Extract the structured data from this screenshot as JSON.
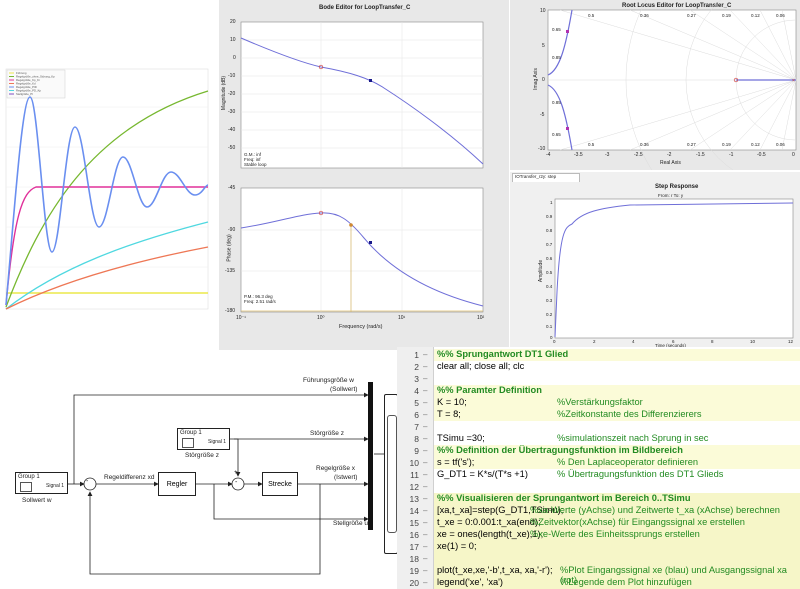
{
  "scope_plot": {
    "legend": [
      "Führung",
      "Regelgröße_ohne_Störung_Kp",
      "Regelgröße_Kp_Ki",
      "Regelgröße_Kd",
      "Regelgröße_PID",
      "Regelgröße_PD_Kp",
      "Stellgröße_PI"
    ],
    "colors": {
      "green": "#77b830",
      "cyan": "#4fd8e0",
      "red": "#ee7755",
      "magenta": "#e0309a",
      "blue": "#6a8ff0",
      "yellow": "#ece84a",
      "purple": "#7d4fc0"
    }
  },
  "bode": {
    "title": "Bode Editor for LoopTransfer_C",
    "mag_ylabel": "Magnitude (dB)",
    "phase_ylabel": "Phase (deg)",
    "xlabel": "Frequency (rad/s)",
    "mag_ticks": [
      "20",
      "10",
      "0",
      "-10",
      "-20",
      "-30",
      "-40",
      "-50"
    ],
    "phase_ticks": [
      "-45",
      "-90",
      "-135",
      "-180"
    ],
    "x_ticks": [
      "10⁻¹",
      "10⁰",
      "10¹",
      "10²"
    ],
    "gm_text": [
      "G.M.: inf",
      "Freq: inf",
      "Stable loop"
    ],
    "pm_text": [
      "P.M.: 96.3 deg",
      "Freq: 2.51 rad/s"
    ]
  },
  "root_locus": {
    "title": "Root Locus Editor for LoopTransfer_C",
    "ylabel": "Imag Axis",
    "xlabel": "Real Axis",
    "x_ticks": [
      "-4",
      "-3.5",
      "-3",
      "-2.5",
      "-2",
      "-1.5",
      "-1",
      "-0.5",
      "0"
    ],
    "y_ticks": [
      "10",
      "5",
      "0",
      "-5",
      "-10"
    ],
    "damping_top": [
      "0.5",
      "0.36",
      "0.27",
      "0.19",
      "0.12",
      "0.06"
    ],
    "damping_bottom": [
      "0.5",
      "0.36",
      "0.27",
      "0.19",
      "0.12",
      "0.06"
    ],
    "freq_labels": [
      "0.65",
      "0.85",
      "0.85",
      "0.65"
    ]
  },
  "step": {
    "tab_label": "IOTransfer_r2y: step",
    "title": "Step Response",
    "subtitle": "From: r  To: y",
    "ylabel": "Amplitude",
    "xlabel": "Time (seconds)",
    "y_ticks": [
      "1",
      "0.9",
      "0.8",
      "0.7",
      "0.6",
      "0.5",
      "0.4",
      "0.3",
      "0.2",
      "0.1",
      "0"
    ],
    "x_ticks": [
      "0",
      "2",
      "4",
      "6",
      "8",
      "10",
      "12"
    ]
  },
  "simulink": {
    "sollwert_block": "Group 1",
    "sollwert_signal": "Signal 1",
    "sollwert_label": "Sollwert w",
    "stoer_block": "Group 1",
    "stoer_signal": "Signal 1",
    "stoer_label": "Störgröße z",
    "regler": "Regler",
    "strecke": "Strecke",
    "regeldifferenz": "Regeldifferenz xd",
    "fuehrung": [
      "Führungsgröße w",
      "(Sollwert)"
    ],
    "stoergroesse": "Störgröße z",
    "regelgroesse": [
      "Regelgröße x",
      "(Istwert)"
    ],
    "stellgroesse": "Stellgröße u",
    "minus": "-",
    "plus": "+"
  },
  "code": {
    "lines": [
      {
        "n": "1",
        "text": "",
        "comment": "%% Sprungantwort DT1 Glied",
        "header": true
      },
      {
        "n": "2",
        "text": "clear all; close all; clc",
        "comment": ""
      },
      {
        "n": "3",
        "text": "",
        "comment": ""
      },
      {
        "n": "4",
        "text": "",
        "comment": "%% Paramter Definition",
        "header": true
      },
      {
        "n": "5",
        "text": "K = 10;",
        "comment": "%Verstärkungsfaktor"
      },
      {
        "n": "6",
        "text": "T = 8;",
        "comment": "%Zeitkonstante des Differenzierers"
      },
      {
        "n": "7",
        "text": "",
        "comment": ""
      },
      {
        "n": "8",
        "text": "TSimu =30;",
        "comment": "%simulationszeit nach Sprung in sec"
      },
      {
        "n": "9",
        "text": "",
        "comment": "%% Definition der Übertragungsfunktion im Bildbereich",
        "header": true
      },
      {
        "n": "10",
        "text": "s = tf('s');",
        "comment": "% Den Laplaceoperator definieren"
      },
      {
        "n": "11",
        "text": "G_DT1 = K*s/(T*s +1)",
        "comment": "% Übertragungsfunktion des DT1 Glieds"
      },
      {
        "n": "12",
        "text": "",
        "comment": ""
      },
      {
        "n": "13",
        "text": "",
        "comment": "%% Visualisieren der Sprungantwort im Bereich 0..TSimu",
        "header": true
      },
      {
        "n": "14",
        "text": "[xa,t_xa]=step(G_DT1,TSimu);",
        "comment": "%xa-Werte (yAchse) und Zeitwerte t_xa (xAchse) berechnen"
      },
      {
        "n": "15",
        "text": "t_xe = 0:0.001:t_xa(end);",
        "comment": "%Zeitvektor(xAchse) für Eingangssignal xe erstellen"
      },
      {
        "n": "16",
        "text": "xe = ones(length(t_xe),1);",
        "comment": "%xe-Werte des Einheitssprungs erstellen"
      },
      {
        "n": "17",
        "text": "xe(1) = 0;",
        "comment": ""
      },
      {
        "n": "18",
        "text": "",
        "comment": ""
      },
      {
        "n": "19",
        "text": "plot(t_xe,xe,'-b',t_xa, xa,'-r');",
        "comment": "%Plot Eingangssignal xe (blau) und Ausgangssignal xa (rot)"
      },
      {
        "n": "20",
        "text": "legend('xe', 'xa')",
        "comment": "%Legende dem Plot hinzufügen"
      }
    ]
  }
}
